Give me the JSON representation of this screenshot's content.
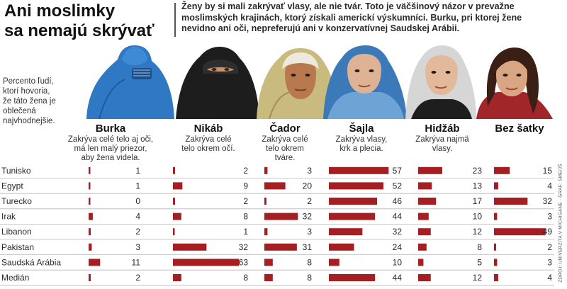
{
  "header": {
    "title_lines": [
      "Ani moslimky",
      "sa nemajú skrývať"
    ],
    "intro_lines": [
      "Ženy by si mali zakrývať vlasy, ale nie tvár. Toto je väčšinový názor v prevažne",
      "moslimských krajinách, ktorý získali americkí výskumníci. Burku, pri ktorej žene",
      "nevidno ani oči, nepreferujú ani v konzervatívnej Saudskej Arábii."
    ]
  },
  "note_lines": [
    "Percento ľudí,",
    "ktorí hovoria,",
    "že táto žena je",
    "oblečená",
    "najvhodnejšie."
  ],
  "source": "ZDROJ: UNIVERZITA V MICHIGANE · GRAF: SME/JŠ",
  "colors": {
    "bar": "#a41e22",
    "rowline": "#b8b8b8"
  },
  "columns": [
    {
      "name": "Burka",
      "desc_lines": [
        "Zakrýva celé telo aj oči,",
        "má len malý priezor,",
        "aby žena videla."
      ]
    },
    {
      "name": "Nikáb",
      "desc_lines": [
        "Zakrýva celé",
        "telo okrem očí."
      ]
    },
    {
      "name": "Čador",
      "desc_lines": [
        "Zakrýva celé",
        "telo okrem",
        "tváre."
      ]
    },
    {
      "name": "Šajla",
      "desc_lines": [
        "Zakrýva vlasy,",
        "krk a plecia."
      ]
    },
    {
      "name": "Hidžáb",
      "desc_lines": [
        "Zakrýva najmä",
        "vlasy."
      ]
    },
    {
      "name": "Bez šatky",
      "desc_lines": []
    }
  ],
  "chart_data": {
    "type": "bar",
    "unit": "%",
    "categories": [
      "Tunisko",
      "Egypt",
      "Turecko",
      "Irak",
      "Libanon",
      "Pakistan",
      "Saudská Arábia",
      "Medián"
    ],
    "series": [
      {
        "name": "Burka",
        "values": [
          1,
          1,
          0,
          4,
          2,
          3,
          11,
          2
        ]
      },
      {
        "name": "Nikáb",
        "values": [
          2,
          9,
          2,
          8,
          1,
          32,
          63,
          8
        ]
      },
      {
        "name": "Čador",
        "values": [
          3,
          20,
          2,
          32,
          3,
          31,
          8,
          8
        ]
      },
      {
        "name": "Šajla",
        "values": [
          57,
          52,
          46,
          44,
          32,
          24,
          10,
          44
        ]
      },
      {
        "name": "Hidžáb",
        "values": [
          23,
          13,
          17,
          10,
          12,
          8,
          5,
          12
        ]
      },
      {
        "name": "Bez šatky",
        "values": [
          15,
          4,
          32,
          3,
          49,
          2,
          3,
          4
        ]
      }
    ]
  }
}
